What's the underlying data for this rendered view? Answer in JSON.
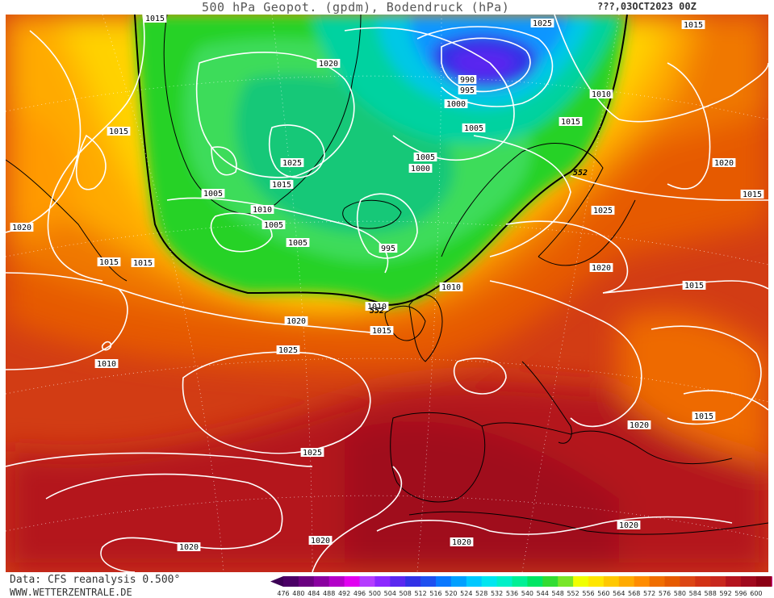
{
  "title": {
    "main": "500 hPa Geopot. (gpdm), Bodendruck (hPa)",
    "date": "???,03OCT2023 00Z"
  },
  "footer": {
    "source": "Data: CFS reanalysis 0.500°",
    "url": "WWW.WETTERZENTRALE.DE"
  },
  "legend": {
    "levels": [
      "476",
      "480",
      "484",
      "488",
      "492",
      "496",
      "500",
      "504",
      "508",
      "512",
      "516",
      "520",
      "524",
      "528",
      "532",
      "536",
      "540",
      "544",
      "548",
      "552",
      "556",
      "560",
      "564",
      "568",
      "572",
      "576",
      "580",
      "584",
      "588",
      "592",
      "596",
      "600"
    ],
    "colors": [
      "#4b0066",
      "#6a0080",
      "#8a00a0",
      "#b400c8",
      "#e100f0",
      "#b43cff",
      "#8c28ff",
      "#5a28f0",
      "#3232e6",
      "#1e50f0",
      "#0a78ff",
      "#00a0ff",
      "#00c8ff",
      "#00e6f0",
      "#00f0c8",
      "#00f096",
      "#00e664",
      "#32dc32",
      "#78e628",
      "#f0ff00",
      "#ffe600",
      "#ffc800",
      "#ffaa00",
      "#ff8c00",
      "#f06e00",
      "#e65a00",
      "#dc4614",
      "#d23214",
      "#c8281e",
      "#b4141e",
      "#a00a1e",
      "#8c0014"
    ],
    "low_arrow": "#3c0055",
    "high_arrow": "#d2148c"
  },
  "pressure_labels": [
    {
      "text": "1015",
      "name": "isobar-label-1015-a"
    },
    {
      "text": "1020",
      "name": "isobar-label-1020-a"
    },
    {
      "text": "1025",
      "name": "isobar-label-1025-a"
    },
    {
      "text": "990",
      "name": "isobar-label-990"
    },
    {
      "text": "995",
      "name": "isobar-label-995-a"
    },
    {
      "text": "1000",
      "name": "isobar-label-1000-a"
    },
    {
      "text": "1010",
      "name": "isobar-label-1010-a"
    },
    {
      "text": "1015",
      "name": "isobar-label-1015-b"
    },
    {
      "text": "1005",
      "name": "isobar-label-1005-a"
    },
    {
      "text": "1005",
      "name": "isobar-label-1005-b"
    },
    {
      "text": "1000",
      "name": "isobar-label-1000-b"
    },
    {
      "text": "1025",
      "name": "isobar-label-1025-b"
    },
    {
      "text": "1015",
      "name": "isobar-label-1015-c"
    },
    {
      "text": "1015",
      "name": "isobar-label-1015-d"
    },
    {
      "text": "1005",
      "name": "isobar-label-1005-c"
    },
    {
      "text": "1010",
      "name": "isobar-label-1010-b"
    },
    {
      "text": "1005",
      "name": "isobar-label-1005-d"
    },
    {
      "text": "1005",
      "name": "isobar-label-1005-e"
    },
    {
      "text": "995",
      "name": "isobar-label-995-b"
    },
    {
      "text": "1020",
      "name": "isobar-label-1020-b"
    },
    {
      "text": "1015",
      "name": "isobar-label-1015-e"
    },
    {
      "text": "1020",
      "name": "isobar-label-1020-c"
    },
    {
      "text": "1015",
      "name": "isobar-label-1015-f"
    },
    {
      "text": "1015",
      "name": "isobar-label-1015-g"
    },
    {
      "text": "1010",
      "name": "isobar-label-1010-c"
    },
    {
      "text": "1025",
      "name": "isobar-label-1025-c"
    },
    {
      "text": "1015",
      "name": "isobar-label-1015-h"
    },
    {
      "text": "1020",
      "name": "isobar-label-1020-d"
    },
    {
      "text": "1010",
      "name": "isobar-label-1010-d"
    },
    {
      "text": "1015",
      "name": "isobar-label-1015-i"
    },
    {
      "text": "1020",
      "name": "isobar-label-1020-e"
    },
    {
      "text": "1025",
      "name": "isobar-label-1025-d"
    },
    {
      "text": "1010",
      "name": "isobar-label-1010-e"
    },
    {
      "text": "1025",
      "name": "isobar-label-1025-e"
    },
    {
      "text": "1020",
      "name": "isobar-label-1020-f"
    },
    {
      "text": "1015",
      "name": "isobar-label-1015-j"
    },
    {
      "text": "1020",
      "name": "isobar-label-1020-g"
    },
    {
      "text": "1020",
      "name": "isobar-label-1020-h"
    },
    {
      "text": "1020",
      "name": "isobar-label-1020-i"
    },
    {
      "text": "1020",
      "name": "isobar-label-1020-j"
    },
    {
      "text": "1015",
      "name": "isobar-label-1015-k"
    }
  ],
  "geopot_labels": [
    {
      "text": "552",
      "name": "geopot-label-552-a"
    },
    {
      "text": "552",
      "name": "geopot-label-552-b"
    }
  ]
}
